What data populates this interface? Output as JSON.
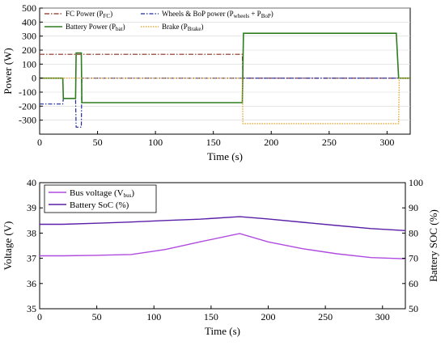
{
  "chart_data": [
    {
      "type": "line",
      "xlabel": "Time (s)",
      "ylabel": "Power (W)",
      "xlim": [
        0,
        320
      ],
      "ylim": [
        -400,
        500
      ],
      "xticks": [
        0,
        50,
        100,
        150,
        200,
        250,
        300
      ],
      "yticks": [
        -300,
        -200,
        -100,
        0,
        100,
        200,
        300,
        400,
        500
      ],
      "legend_position": "top-left, inside",
      "series": [
        {
          "name": "FC Power (P_FC)",
          "legend_main": "FC Power (P",
          "legend_sub": "FC",
          "legend_end": ")",
          "color": "#8b2c1c",
          "dash": "6,2,1.5,2",
          "x": [
            0,
            175,
            175.5,
            177,
            320
          ],
          "y": [
            170,
            170,
            0,
            0,
            0
          ]
        },
        {
          "name": "Wheels & BoP power (P_wheels + P_BoP)",
          "legend_main": "Wheels & BoP power (P",
          "legend_sub": "wheels",
          "legend_mid": " + P",
          "legend_sub2": "BoP",
          "legend_end": ")",
          "color": "#1f2a9a",
          "dash": "5,2,1.5,2",
          "x": [
            0,
            20,
            20.5,
            31,
            31.5,
            36,
            36.5,
            320
          ],
          "y": [
            -185,
            -185,
            -145,
            -145,
            -350,
            -350,
            0,
            0
          ]
        },
        {
          "name": "Battery Power (P_bat)",
          "legend_main": "Battery Power (P",
          "legend_sub": "bat",
          "legend_end": ")",
          "color": "#2e7d1e",
          "dash": "",
          "x": [
            0,
            20,
            20.5,
            31,
            31.5,
            36,
            36.5,
            175,
            176,
            308,
            310,
            320
          ],
          "y": [
            0,
            0,
            -145,
            -145,
            180,
            180,
            -175,
            -175,
            320,
            320,
            0,
            0
          ]
        },
        {
          "name": "Brake (P_Brake)",
          "legend_main": "Brake (P",
          "legend_sub": "Brake",
          "legend_end": ")",
          "color": "#e09a1a",
          "dash": "1.5,1.5",
          "x": [
            0,
            175,
            175.5,
            310,
            310.5,
            320
          ],
          "y": [
            0,
            0,
            -325,
            -325,
            0,
            0
          ]
        }
      ]
    },
    {
      "type": "line",
      "xlabel": "Time (s)",
      "ylabel": "Voltage (V)",
      "ylabel_right": "Battery SOC (%)",
      "xlim": [
        0,
        320
      ],
      "ylim": [
        35,
        40
      ],
      "ylim_right": [
        50,
        100
      ],
      "xticks": [
        0,
        50,
        100,
        150,
        200,
        250,
        300
      ],
      "yticks": [
        35,
        36,
        37,
        38,
        39,
        40
      ],
      "yticks_right": [
        50,
        60,
        70,
        80,
        90,
        100
      ],
      "legend_position": "top-left, inside",
      "series": [
        {
          "name": "Bus voltage (V_bus)",
          "legend_main": "Bus voltage (V",
          "legend_sub": "bus",
          "legend_end": ")",
          "color": "#b04be0",
          "axis": "left",
          "x": [
            0,
            20,
            50,
            80,
            110,
            140,
            175,
            200,
            230,
            260,
            290,
            320
          ],
          "y": [
            37.1,
            37.1,
            37.12,
            37.15,
            37.35,
            37.65,
            37.98,
            37.65,
            37.38,
            37.18,
            37.03,
            36.98
          ]
        },
        {
          "name": "Battery SoC (%)",
          "legend_main": "Battery SoC (%)",
          "legend_sub": "",
          "legend_end": "",
          "color": "#5a1fa8",
          "axis": "right",
          "x": [
            0,
            20,
            50,
            80,
            110,
            140,
            175,
            200,
            230,
            260,
            290,
            320
          ],
          "y": [
            83.5,
            83.5,
            83.9,
            84.4,
            85.0,
            85.5,
            86.5,
            85.6,
            84.3,
            83.0,
            81.8,
            81.0
          ]
        }
      ]
    }
  ]
}
